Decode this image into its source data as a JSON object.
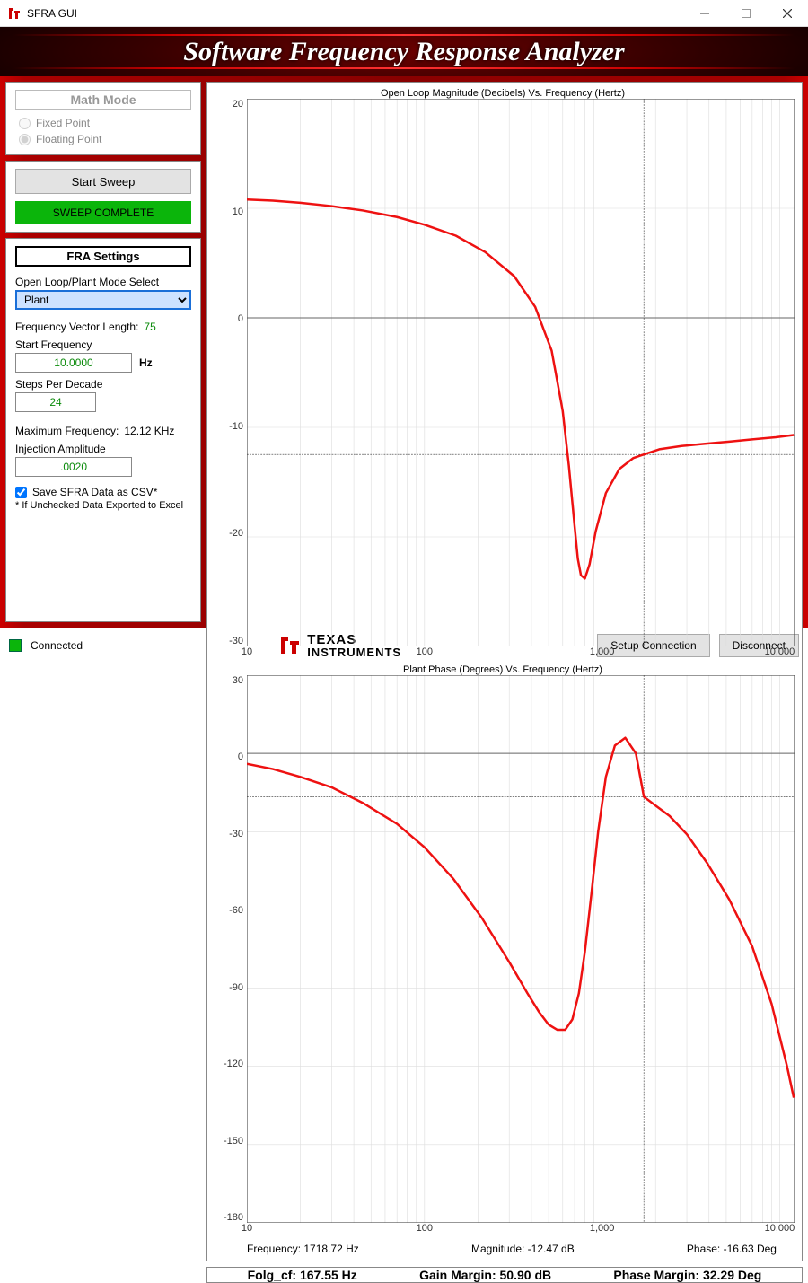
{
  "window": {
    "title": "SFRA GUI"
  },
  "header": {
    "title": "Software Frequency Response Analyzer"
  },
  "math_mode": {
    "heading": "Math Mode",
    "fixed_label": "Fixed Point",
    "floating_label": "Floating Point",
    "selected": "floating"
  },
  "sweep": {
    "button_label": "Start Sweep",
    "status_text": "SWEEP COMPLETE",
    "status_bg": "#0bb50b"
  },
  "fra": {
    "heading": "FRA Settings",
    "mode_label": "Open Loop/Plant Mode Select",
    "mode_value": "Plant",
    "mode_options": [
      "Plant",
      "Open Loop"
    ],
    "vec_len_label": "Frequency Vector Length:",
    "vec_len_value": "75",
    "start_freq_label": "Start Frequency",
    "start_freq_value": "10.0000",
    "start_freq_unit": "Hz",
    "steps_label": "Steps Per Decade",
    "steps_value": "24",
    "max_freq_label": "Maximum Frequency:",
    "max_freq_value": "12.12 KHz",
    "inj_amp_label": "Injection Amplitude",
    "inj_amp_value": ".0020",
    "save_csv_label": "Save SFRA Data as CSV*",
    "save_csv_checked": true,
    "save_csv_note": "* If Unchecked Data Exported to Excel"
  },
  "charts": {
    "x_axis": {
      "scale": "log",
      "min": 10,
      "max": 12120,
      "ticks": [
        10,
        100,
        1000,
        10000
      ],
      "tick_labels": [
        "10",
        "100",
        "1,000",
        "10,000"
      ],
      "log_minor": [
        1,
        2,
        3,
        4,
        5,
        6,
        7,
        8,
        9
      ]
    },
    "cursor_freq": 1718.72,
    "magnitude": {
      "title": "Open Loop Magnitude (Decibels) Vs. Frequency (Hertz)",
      "ymin": -30,
      "ymax": 20,
      "ystep": 10,
      "yticks": [
        20,
        10,
        0,
        -10,
        -20,
        -30
      ],
      "cursor_value": -12.47,
      "line_color": "#e11",
      "data_freq": [
        10,
        14,
        20,
        30,
        45,
        70,
        100,
        150,
        220,
        320,
        420,
        520,
        600,
        650,
        700,
        730,
        760,
        800,
        850,
        920,
        1050,
        1250,
        1500,
        1719,
        2100,
        2800,
        3800,
        5200,
        7000,
        9500,
        12000
      ],
      "data_val": [
        10.8,
        10.7,
        10.5,
        10.2,
        9.8,
        9.2,
        8.5,
        7.5,
        6.0,
        3.8,
        1.0,
        -3.0,
        -8.5,
        -13.5,
        -19.0,
        -22.0,
        -23.5,
        -23.8,
        -22.5,
        -19.5,
        -16.0,
        -13.8,
        -12.8,
        -12.47,
        -12.0,
        -11.7,
        -11.5,
        -11.3,
        -11.1,
        -10.9,
        -10.7
      ]
    },
    "phase": {
      "title": "Plant Phase (Degrees) Vs. Frequency (Hertz)",
      "ymin": -180,
      "ymax": 30,
      "ystep": 30,
      "yticks": [
        30,
        0,
        -30,
        -60,
        -90,
        -120,
        -150,
        -180
      ],
      "cursor_value": -16.63,
      "line_color": "#e11",
      "data_freq": [
        10,
        14,
        20,
        30,
        45,
        70,
        100,
        145,
        210,
        300,
        380,
        440,
        500,
        560,
        620,
        680,
        740,
        800,
        870,
        950,
        1050,
        1180,
        1350,
        1550,
        1719,
        2000,
        2400,
        3000,
        3900,
        5200,
        7000,
        9000,
        11000,
        12000
      ],
      "data_val": [
        -4,
        -6,
        -9,
        -13,
        -19,
        -27,
        -36,
        -48,
        -63,
        -80,
        -92,
        -99,
        -104,
        -106,
        -106,
        -102,
        -92,
        -76,
        -54,
        -30,
        -9,
        3,
        6,
        0,
        -16.63,
        -20,
        -24,
        -31,
        -42,
        -56,
        -74,
        -96,
        -120,
        -132
      ]
    },
    "readout": {
      "freq_label": "Frequency:",
      "freq_value": "1718.72 Hz",
      "mag_label": "Magnitude:",
      "mag_value": "-12.47 dB",
      "phase_label": "Phase:",
      "phase_value": "-16.63 Deg"
    }
  },
  "metrics": {
    "folg_label": "Folg_cf:",
    "folg_value": "167.55 Hz",
    "gm_label": "Gain Margin:",
    "gm_value": "50.90 dB",
    "pm_label": "Phase Margin:",
    "pm_value": "32.29 Deg"
  },
  "footer": {
    "connected_label": "Connected",
    "setup_btn": "Setup Connection",
    "disconnect_btn": "Disconnect",
    "logo_top": "TEXAS",
    "logo_bottom": "INSTRUMENTS"
  },
  "colors": {
    "accent_red": "#c00",
    "status_green": "#0bb50b",
    "value_green": "#0a8a0a",
    "select_highlight": "#1a6fd8"
  }
}
